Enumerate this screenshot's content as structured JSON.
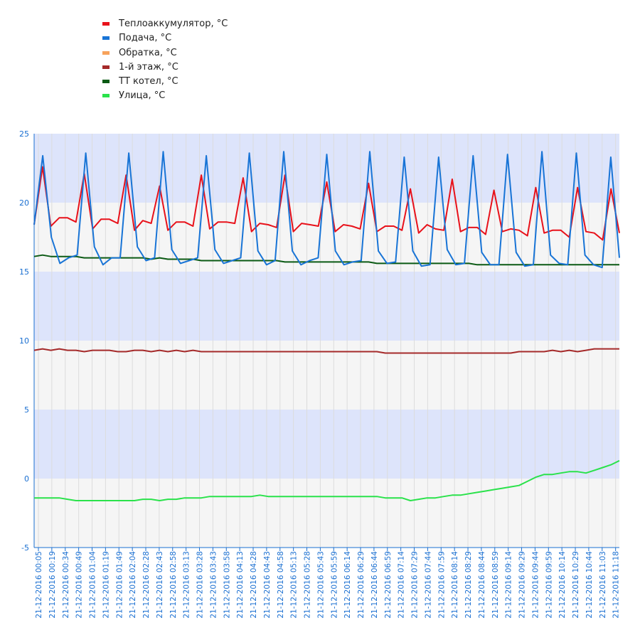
{
  "legend": {
    "items": [
      {
        "label": "Теплоаккумулятор, °C",
        "color": "#e8111a"
      },
      {
        "label": "Подача, °C",
        "color": "#1874d6"
      },
      {
        "label": "Обратка, °C",
        "color": "#f7a35c"
      },
      {
        "label": "1-й этаж, °C",
        "color": "#a52a2a"
      },
      {
        "label": "ТТ котел, °C",
        "color": "#0b5a14"
      },
      {
        "label": "Улица, °C",
        "color": "#2ae24b"
      }
    ]
  },
  "chart_data": {
    "type": "line",
    "title": "",
    "xlabel": "",
    "ylabel": "",
    "ylim": [
      -5,
      25
    ],
    "yticks": [
      -5,
      0,
      5,
      10,
      15,
      20,
      25
    ],
    "grid": true,
    "legend_position": "top-left",
    "band_colors": [
      "#f5f5f5",
      "#dde4fb"
    ],
    "tick_color": "#1a6fd1",
    "x_tick_labels": [
      "21-12-2016 00:05",
      "21-12-2016 00:19",
      "21-12-2016 00:34",
      "21-12-2016 00:49",
      "21-12-2016 01:04",
      "21-12-2016 01:19",
      "21-12-2016 01:49",
      "21-12-2016 02:04",
      "21-12-2016 02:28",
      "21-12-2016 02:43",
      "21-12-2016 02:58",
      "21-12-2016 03:13",
      "21-12-2016 03:28",
      "21-12-2016 03:43",
      "21-12-2016 03:58",
      "21-12-2016 04:13",
      "21-12-2016 04:28",
      "21-12-2016 04:43",
      "21-12-2016 04:58",
      "21-12-2016 05:13",
      "21-12-2016 05:28",
      "21-12-2016 05:43",
      "21-12-2016 05:59",
      "21-12-2016 06:14",
      "21-12-2016 06:29",
      "21-12-2016 06:44",
      "21-12-2016 06:59",
      "21-12-2016 07:14",
      "21-12-2016 07:29",
      "21-12-2016 07:44",
      "21-12-2016 07:59",
      "21-12-2016 08:14",
      "21-12-2016 08:29",
      "21-12-2016 08:44",
      "21-12-2016 08:59",
      "21-12-2016 09:14",
      "21-12-2016 09:29",
      "21-12-2016 09:44",
      "21-12-2016 09:59",
      "21-12-2016 10:14",
      "21-12-2016 10:29",
      "21-12-2016 10:44",
      "21-12-2016 11:03",
      "21-12-2016 11:18"
    ],
    "series": [
      {
        "name": "Теплоаккумулятор, °C",
        "color": "#e8111a",
        "values": [
          18.4,
          22.6,
          18.3,
          18.9,
          18.9,
          18.6,
          22.1,
          18.1,
          18.8,
          18.8,
          18.5,
          22.0,
          18.0,
          18.7,
          18.5,
          21.2,
          18.0,
          18.6,
          18.6,
          18.3,
          22.0,
          18.1,
          18.6,
          18.6,
          18.5,
          21.8,
          17.9,
          18.5,
          18.4,
          18.2,
          22.0,
          17.9,
          18.5,
          18.4,
          18.3,
          21.5,
          17.9,
          18.4,
          18.3,
          18.1,
          21.4,
          17.9,
          18.3,
          18.3,
          18.0,
          21.0,
          17.8,
          18.4,
          18.1,
          18.0,
          21.7,
          17.9,
          18.2,
          18.2,
          17.7,
          20.9,
          17.9,
          18.1,
          18.0,
          17.6,
          21.1,
          17.8,
          18.0,
          18.0,
          17.5,
          21.1,
          17.9,
          17.8,
          17.3,
          21.0,
          17.8
        ]
      },
      {
        "name": "Подача, °C",
        "color": "#1874d6",
        "values": [
          18.4,
          23.4,
          17.5,
          15.6,
          16.0,
          16.2,
          23.6,
          16.8,
          15.5,
          16.0,
          16.0,
          23.6,
          16.8,
          15.8,
          16.0,
          23.7,
          16.6,
          15.6,
          15.8,
          16.0,
          23.4,
          16.6,
          15.6,
          15.8,
          16.0,
          23.6,
          16.5,
          15.5,
          15.8,
          23.7,
          16.5,
          15.5,
          15.8,
          16.0,
          23.5,
          16.5,
          15.5,
          15.7,
          15.8,
          23.7,
          16.5,
          15.6,
          15.7,
          23.3,
          16.5,
          15.4,
          15.5,
          23.3,
          16.6,
          15.5,
          15.6,
          23.4,
          16.4,
          15.5,
          15.5,
          23.5,
          16.4,
          15.4,
          15.5,
          23.7,
          16.2,
          15.6,
          15.5,
          23.6,
          16.2,
          15.5,
          15.3,
          23.3,
          16.0
        ]
      },
      {
        "name": "Обратка, °C",
        "color": "#f7a35c",
        "values": []
      },
      {
        "name": "1-й этаж, °C",
        "color": "#a52a2a",
        "values": [
          9.3,
          9.4,
          9.3,
          9.4,
          9.3,
          9.3,
          9.2,
          9.3,
          9.3,
          9.3,
          9.2,
          9.2,
          9.3,
          9.3,
          9.2,
          9.3,
          9.2,
          9.3,
          9.2,
          9.3,
          9.2,
          9.2,
          9.2,
          9.2,
          9.2,
          9.2,
          9.2,
          9.2,
          9.2,
          9.2,
          9.2,
          9.2,
          9.2,
          9.2,
          9.2,
          9.2,
          9.2,
          9.2,
          9.2,
          9.2,
          9.2,
          9.2,
          9.1,
          9.1,
          9.1,
          9.1,
          9.1,
          9.1,
          9.1,
          9.1,
          9.1,
          9.1,
          9.1,
          9.1,
          9.1,
          9.1,
          9.1,
          9.1,
          9.2,
          9.2,
          9.2,
          9.2,
          9.3,
          9.2,
          9.3,
          9.2,
          9.3,
          9.4,
          9.4,
          9.4,
          9.4
        ]
      },
      {
        "name": "ТТ котел, °C",
        "color": "#0b5a14",
        "values": [
          16.1,
          16.2,
          16.1,
          16.1,
          16.1,
          16.1,
          16.0,
          16.0,
          16.0,
          16.0,
          16.0,
          16.0,
          16.0,
          16.0,
          15.9,
          16.0,
          15.9,
          15.9,
          15.9,
          15.9,
          15.8,
          15.8,
          15.8,
          15.8,
          15.8,
          15.8,
          15.8,
          15.8,
          15.8,
          15.8,
          15.7,
          15.7,
          15.7,
          15.7,
          15.7,
          15.7,
          15.7,
          15.7,
          15.7,
          15.7,
          15.7,
          15.6,
          15.6,
          15.6,
          15.6,
          15.6,
          15.6,
          15.6,
          15.6,
          15.6,
          15.6,
          15.6,
          15.6,
          15.5,
          15.5,
          15.5,
          15.5,
          15.5,
          15.5,
          15.5,
          15.5,
          15.5,
          15.5,
          15.5,
          15.5,
          15.5,
          15.5,
          15.5,
          15.5,
          15.5,
          15.5
        ]
      },
      {
        "name": "Улица, °C",
        "color": "#2ae24b",
        "values": [
          -1.4,
          -1.4,
          -1.4,
          -1.4,
          -1.5,
          -1.6,
          -1.6,
          -1.6,
          -1.6,
          -1.6,
          -1.6,
          -1.6,
          -1.6,
          -1.5,
          -1.5,
          -1.6,
          -1.5,
          -1.5,
          -1.4,
          -1.4,
          -1.4,
          -1.3,
          -1.3,
          -1.3,
          -1.3,
          -1.3,
          -1.3,
          -1.2,
          -1.3,
          -1.3,
          -1.3,
          -1.3,
          -1.3,
          -1.3,
          -1.3,
          -1.3,
          -1.3,
          -1.3,
          -1.3,
          -1.3,
          -1.3,
          -1.3,
          -1.4,
          -1.4,
          -1.4,
          -1.6,
          -1.5,
          -1.4,
          -1.4,
          -1.3,
          -1.2,
          -1.2,
          -1.1,
          -1.0,
          -0.9,
          -0.8,
          -0.7,
          -0.6,
          -0.5,
          -0.2,
          0.1,
          0.3,
          0.3,
          0.4,
          0.5,
          0.5,
          0.4,
          0.6,
          0.8,
          1.0,
          1.3
        ]
      }
    ]
  }
}
